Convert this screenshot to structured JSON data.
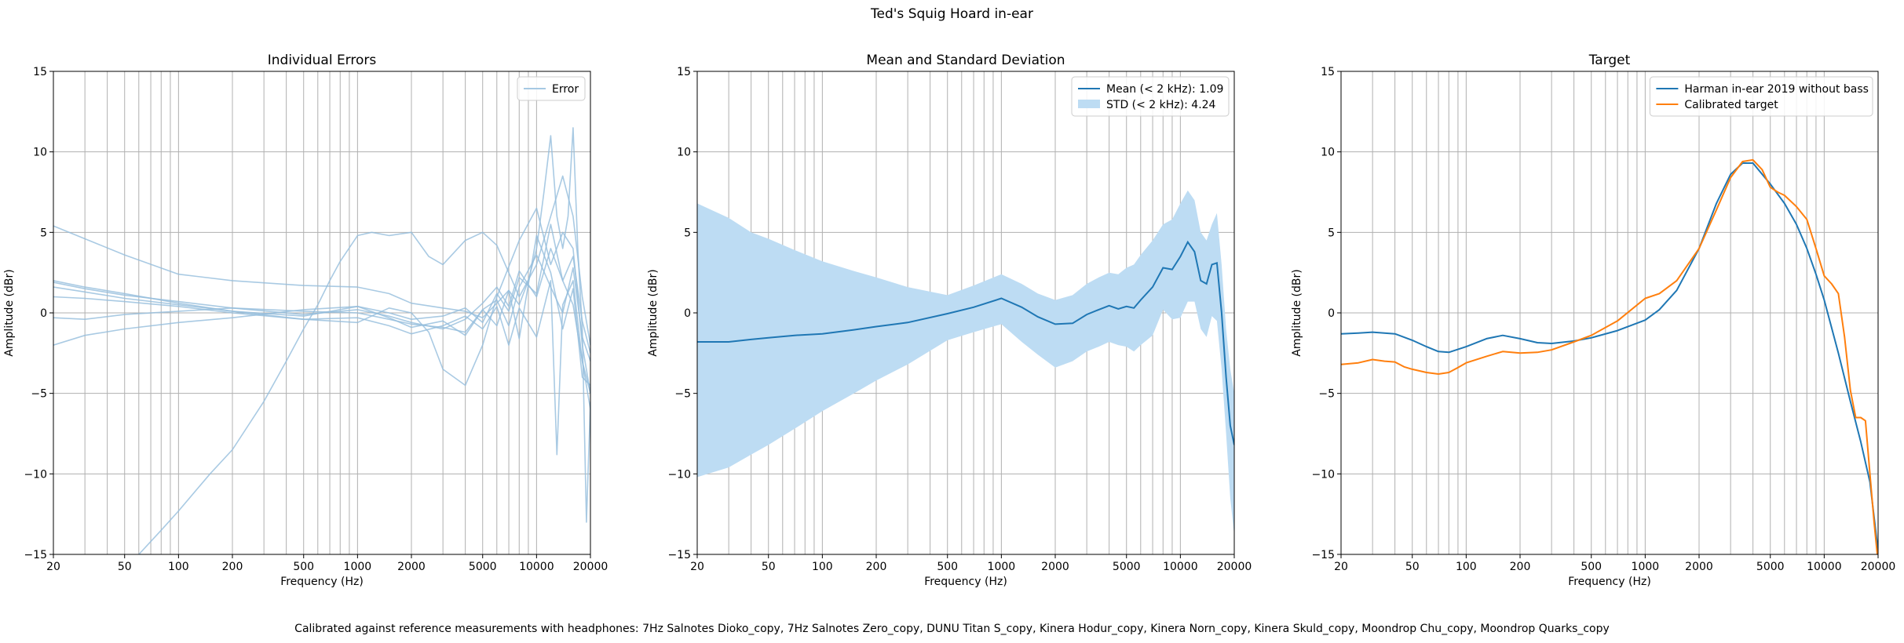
{
  "figure": {
    "suptitle": "Ted's Squig Hoard in-ear",
    "footer": "Calibrated against reference measurements with headphones: 7Hz Salnotes Dioko_copy, 7Hz Salnotes Zero_copy, DUNU Titan S_copy, Kinera Hodur_copy, Kinera Norn_copy, Kinera Skuld_copy, Moondrop Chu_copy, Moondrop Quarks_copy"
  },
  "chart_data": [
    {
      "type": "line",
      "title": "Individual Errors",
      "xlabel": "Frequency (Hz)",
      "ylabel": "Amplitude (dBr)",
      "xscale": "log",
      "xlim": [
        20,
        20000
      ],
      "ylim": [
        -15,
        15
      ],
      "xticks": [
        20,
        50,
        100,
        200,
        500,
        1000,
        2000,
        5000,
        10000,
        20000
      ],
      "xtick_labels": [
        "20",
        "50",
        "100",
        "200",
        "500",
        "1000",
        "2000",
        "5000",
        "10000",
        "20000"
      ],
      "yticks": [
        -15,
        -10,
        -5,
        0,
        5,
        10,
        15
      ],
      "ytick_labels": [
        "−15",
        "−10",
        "−5",
        "0",
        "5",
        "10",
        "15"
      ],
      "grid": true,
      "legend_position": "top-right",
      "legend": [
        {
          "label": "Error",
          "style": "line",
          "color": "#a6c9e3"
        }
      ],
      "series_color": "#93bddc",
      "series": [
        {
          "x": [
            20,
            30,
            50,
            100,
            200,
            500,
            1000,
            1500,
            2000,
            3000,
            4000,
            5000,
            6000,
            7000,
            8000,
            9000,
            10000,
            11000,
            12000,
            13000,
            14000,
            15000,
            16000,
            17000,
            18000,
            19000,
            20000
          ],
          "y": [
            5.4,
            4.6,
            3.6,
            2.4,
            2.0,
            1.7,
            1.6,
            1.2,
            0.6,
            0.3,
            0.1,
            -0.3,
            0.6,
            1.4,
            0.5,
            2.0,
            4.0,
            7.5,
            11.0,
            6.0,
            4.0,
            6.0,
            11.5,
            4.0,
            -1.0,
            -13.0,
            -5.5
          ]
        },
        {
          "x": [
            60,
            80,
            100,
            150,
            200,
            300,
            400,
            500,
            600,
            700,
            800,
            1000,
            1200,
            1500,
            2000,
            2500,
            3000,
            4000,
            5000,
            6000,
            7000,
            8000,
            10000,
            12000,
            14000,
            16000,
            18000,
            20000
          ],
          "y": [
            -15,
            -13.5,
            -12.3,
            -10.0,
            -8.5,
            -5.5,
            -3.0,
            -1.0,
            0.5,
            2.0,
            3.2,
            4.8,
            5.0,
            4.8,
            5.0,
            3.5,
            3.0,
            4.5,
            5.0,
            4.2,
            2.5,
            1.0,
            3.0,
            6.0,
            8.5,
            6.0,
            1.0,
            -2.0
          ]
        },
        {
          "x": [
            20,
            30,
            50,
            100,
            200,
            500,
            1000,
            1500,
            2000,
            2500,
            3000,
            4000,
            5000,
            6000,
            8000,
            10000,
            12000,
            14000,
            16000,
            18000,
            20000
          ],
          "y": [
            2.0,
            1.6,
            1.2,
            0.6,
            0.1,
            -0.4,
            -0.6,
            0.3,
            0.0,
            -1.2,
            -3.5,
            -4.5,
            -2.0,
            1.0,
            4.5,
            6.5,
            3.0,
            5.0,
            4.0,
            -2.0,
            -5.0
          ]
        },
        {
          "x": [
            20,
            30,
            50,
            100,
            200,
            500,
            1000,
            1500,
            2000,
            3000,
            4000,
            5000,
            6000,
            7000,
            8000,
            10000,
            12000,
            14000,
            16000,
            18000,
            20000
          ],
          "y": [
            1.9,
            1.5,
            1.1,
            0.7,
            0.3,
            -0.1,
            0.2,
            -0.2,
            -0.6,
            -1.0,
            -0.4,
            0.6,
            1.6,
            0.4,
            2.6,
            1.0,
            4.0,
            2.0,
            0.5,
            -3.0,
            -6.0
          ]
        },
        {
          "x": [
            20,
            30,
            50,
            100,
            200,
            500,
            1000,
            1500,
            2000,
            3000,
            4000,
            5000,
            6000,
            7000,
            8000,
            10000,
            12000,
            14000,
            16000,
            18000,
            20000
          ],
          "y": [
            1.6,
            1.3,
            0.9,
            0.5,
            0.1,
            -0.2,
            0.4,
            -0.3,
            -0.9,
            -0.5,
            -1.4,
            0.2,
            -0.8,
            1.4,
            -1.6,
            4.8,
            2.5,
            -1.0,
            1.5,
            -4.0,
            -4.5
          ]
        },
        {
          "x": [
            20,
            30,
            50,
            100,
            200,
            500,
            1000,
            1500,
            2000,
            3000,
            4000,
            5000,
            6000,
            7000,
            8000,
            10000,
            12000,
            13000,
            14000,
            16000,
            18000,
            20000
          ],
          "y": [
            1.0,
            0.9,
            0.7,
            0.4,
            0.0,
            -0.4,
            -0.3,
            -0.8,
            -1.3,
            -0.8,
            -0.2,
            -1.0,
            0.4,
            -2.0,
            0.3,
            -1.5,
            2.0,
            -8.8,
            0.5,
            2.0,
            -3.0,
            -5.0
          ]
        },
        {
          "x": [
            20,
            30,
            50,
            100,
            200,
            500,
            1000,
            1500,
            2000,
            3000,
            4000,
            5000,
            6000,
            7000,
            8000,
            10000,
            12000,
            14000,
            16000,
            18000,
            20000
          ],
          "y": [
            -0.3,
            -0.4,
            -0.1,
            0.1,
            0.3,
            0.1,
            0.0,
            -0.4,
            -0.7,
            -0.9,
            -1.2,
            0.2,
            0.8,
            -0.8,
            1.6,
            3.6,
            1.6,
            0.0,
            2.8,
            -1.5,
            -3.0
          ]
        },
        {
          "x": [
            20,
            30,
            50,
            100,
            200,
            500,
            1000,
            1500,
            2000,
            3000,
            4000,
            5000,
            6000,
            7000,
            8000,
            10000,
            12000,
            14000,
            16000,
            18000,
            20000
          ],
          "y": [
            -2.0,
            -1.4,
            -1.0,
            -0.6,
            -0.3,
            0.2,
            0.4,
            0.0,
            -0.4,
            -0.2,
            0.3,
            -0.6,
            1.2,
            0.1,
            2.2,
            1.2,
            5.5,
            2.0,
            3.5,
            -0.5,
            -2.5
          ]
        }
      ]
    },
    {
      "type": "line",
      "title": "Mean and Standard Deviation",
      "xlabel": "Frequency (Hz)",
      "ylabel": "Amplitude (dBr)",
      "xscale": "log",
      "xlim": [
        20,
        20000
      ],
      "ylim": [
        -15,
        15
      ],
      "xticks": [
        20,
        50,
        100,
        200,
        500,
        1000,
        2000,
        5000,
        10000,
        20000
      ],
      "xtick_labels": [
        "20",
        "50",
        "100",
        "200",
        "500",
        "1000",
        "2000",
        "5000",
        "10000",
        "20000"
      ],
      "yticks": [
        -15,
        -10,
        -5,
        0,
        5,
        10,
        15
      ],
      "ytick_labels": [
        "−15",
        "−10",
        "−5",
        "0",
        "5",
        "10",
        "15"
      ],
      "grid": true,
      "legend_position": "top-right",
      "legend": [
        {
          "label": "Mean (< 2 kHz): 1.09",
          "style": "line",
          "color": "#1f77b4"
        },
        {
          "label": "STD (< 2 kHz): 4.24",
          "style": "patch",
          "color": "#bddcf3"
        }
      ],
      "mean": {
        "color": "#1f77b4",
        "x": [
          20,
          30,
          40,
          50,
          70,
          100,
          150,
          200,
          300,
          500,
          700,
          1000,
          1300,
          1600,
          2000,
          2500,
          3000,
          3500,
          4000,
          4500,
          5000,
          5500,
          6000,
          7000,
          8000,
          9000,
          10000,
          11000,
          12000,
          13000,
          14000,
          15000,
          16000,
          17000,
          18000,
          19000,
          20000
        ],
        "y": [
          -1.8,
          -1.8,
          -1.65,
          -1.55,
          -1.4,
          -1.3,
          -1.05,
          -0.85,
          -0.6,
          -0.05,
          0.35,
          0.9,
          0.35,
          -0.25,
          -0.7,
          -0.65,
          -0.1,
          0.2,
          0.45,
          0.25,
          0.4,
          0.3,
          0.8,
          1.6,
          2.8,
          2.7,
          3.5,
          4.4,
          3.8,
          2.0,
          1.8,
          3.0,
          3.1,
          0.0,
          -4.0,
          -7.0,
          -8.2
        ]
      },
      "std_band": {
        "color": "#bddcf3",
        "x": [
          20,
          30,
          40,
          50,
          70,
          100,
          150,
          200,
          300,
          500,
          700,
          1000,
          1300,
          1600,
          2000,
          2500,
          3000,
          3500,
          4000,
          4500,
          5000,
          5500,
          6000,
          7000,
          8000,
          9000,
          10000,
          11000,
          12000,
          13000,
          14000,
          15000,
          16000,
          17000,
          18000,
          19000,
          20000
        ],
        "upper": [
          6.8,
          5.9,
          5.0,
          4.6,
          3.9,
          3.2,
          2.6,
          2.2,
          1.6,
          1.1,
          1.7,
          2.4,
          1.8,
          1.2,
          0.8,
          1.1,
          1.8,
          2.2,
          2.5,
          2.4,
          2.8,
          3.0,
          3.6,
          4.5,
          5.5,
          5.8,
          6.8,
          7.6,
          7.0,
          5.0,
          4.5,
          5.5,
          6.2,
          3.0,
          -1.0,
          -3.5,
          -5.0
        ],
        "lower": [
          -10.2,
          -9.6,
          -8.8,
          -8.2,
          -7.2,
          -6.1,
          -5.0,
          -4.2,
          -3.2,
          -1.7,
          -1.2,
          -0.7,
          -1.8,
          -2.6,
          -3.4,
          -3.0,
          -2.4,
          -2.1,
          -1.8,
          -2.0,
          -2.1,
          -2.4,
          -2.0,
          -1.4,
          0.2,
          -0.4,
          -0.3,
          0.7,
          0.7,
          -1.0,
          -1.5,
          -0.2,
          -0.5,
          -3.5,
          -7.5,
          -11.5,
          -13.8
        ]
      }
    },
    {
      "type": "line",
      "title": "Target",
      "xlabel": "Frequency (Hz)",
      "ylabel": "Amplitude (dBr)",
      "xscale": "log",
      "xlim": [
        20,
        20000
      ],
      "ylim": [
        -15,
        15
      ],
      "xticks": [
        20,
        50,
        100,
        200,
        500,
        1000,
        2000,
        5000,
        10000,
        20000
      ],
      "xtick_labels": [
        "20",
        "50",
        "100",
        "200",
        "500",
        "1000",
        "2000",
        "5000",
        "10000",
        "20000"
      ],
      "yticks": [
        -15,
        -10,
        -5,
        0,
        5,
        10,
        15
      ],
      "ytick_labels": [
        "−15",
        "−10",
        "−5",
        "0",
        "5",
        "10",
        "15"
      ],
      "grid": true,
      "legend_position": "top-right",
      "legend": [
        {
          "label": "Harman in-ear 2019 without bass",
          "style": "line",
          "color": "#1f77b4"
        },
        {
          "label": "Calibrated target",
          "style": "line",
          "color": "#ff7f0e"
        }
      ],
      "series": [
        {
          "name": "Harman in-ear 2019 without bass",
          "color": "#1f77b4",
          "x": [
            20,
            25,
            30,
            40,
            50,
            60,
            70,
            80,
            100,
            130,
            160,
            200,
            250,
            300,
            400,
            500,
            700,
            1000,
            1200,
            1500,
            2000,
            2500,
            3000,
            3500,
            4000,
            5000,
            6000,
            7000,
            8000,
            9000,
            10000,
            12000,
            14000,
            16000,
            18000,
            20000
          ],
          "y": [
            -1.3,
            -1.25,
            -1.2,
            -1.3,
            -1.7,
            -2.1,
            -2.4,
            -2.45,
            -2.1,
            -1.6,
            -1.4,
            -1.6,
            -1.85,
            -1.9,
            -1.75,
            -1.55,
            -1.1,
            -0.45,
            0.2,
            1.4,
            4.0,
            6.8,
            8.6,
            9.3,
            9.3,
            8.0,
            6.8,
            5.5,
            4.0,
            2.4,
            0.8,
            -2.5,
            -5.5,
            -8.0,
            -10.5,
            -14.8
          ]
        },
        {
          "name": "Calibrated target",
          "color": "#ff7f0e",
          "x": [
            20,
            25,
            30,
            35,
            40,
            45,
            50,
            60,
            70,
            80,
            90,
            100,
            130,
            160,
            200,
            250,
            300,
            400,
            500,
            700,
            1000,
            1200,
            1500,
            2000,
            2500,
            3000,
            3500,
            4000,
            4500,
            5000,
            5500,
            6000,
            7000,
            8000,
            9000,
            10000,
            11000,
            12000,
            13000,
            14000,
            15000,
            16000,
            17000,
            18000,
            19000,
            20000
          ],
          "y": [
            -3.2,
            -3.1,
            -2.9,
            -3.0,
            -3.05,
            -3.35,
            -3.5,
            -3.7,
            -3.8,
            -3.7,
            -3.4,
            -3.1,
            -2.7,
            -2.4,
            -2.5,
            -2.45,
            -2.3,
            -1.8,
            -1.4,
            -0.5,
            0.9,
            1.2,
            2.0,
            4.0,
            6.4,
            8.4,
            9.4,
            9.5,
            8.9,
            7.8,
            7.5,
            7.3,
            6.6,
            5.8,
            4.0,
            2.3,
            1.8,
            1.2,
            -1.5,
            -4.8,
            -6.5,
            -6.5,
            -6.7,
            -10.0,
            -13.0,
            -15.5
          ]
        }
      ]
    }
  ]
}
